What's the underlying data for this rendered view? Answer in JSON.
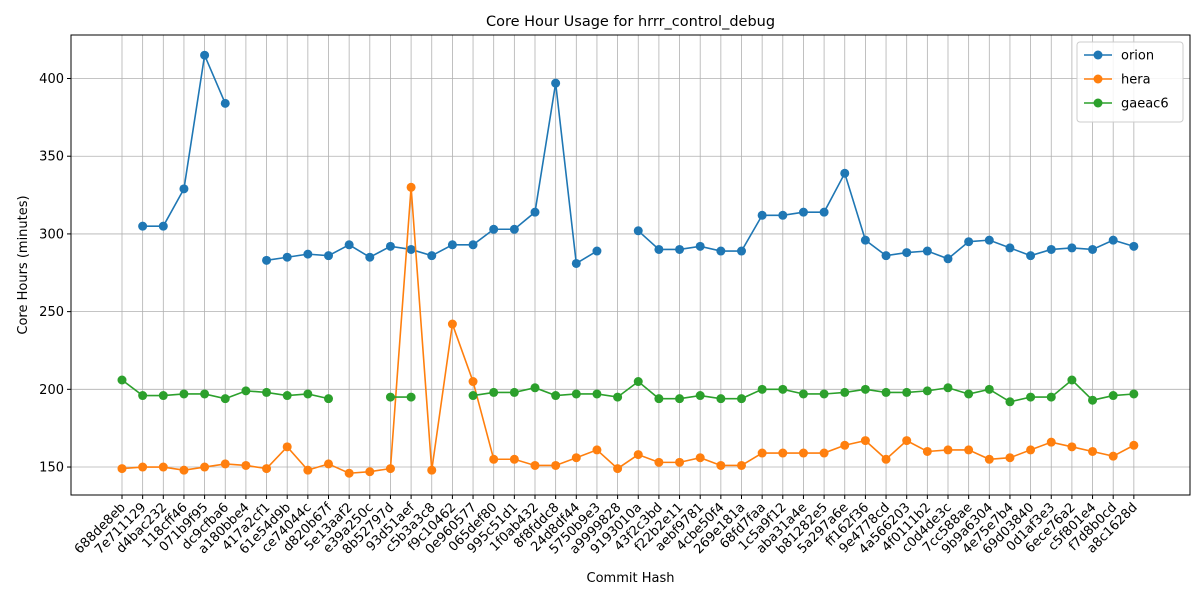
{
  "chart_data": {
    "type": "line",
    "title": "Core Hour Usage for hrrr_control_debug",
    "xlabel": "Commit Hash",
    "ylabel": "Core Hours (minutes)",
    "ylim": [
      132,
      428
    ],
    "yticks": [
      150,
      200,
      250,
      300,
      350,
      400
    ],
    "grid": true,
    "legend_position": "top-right",
    "categories": [
      "688de8eb",
      "7e711129",
      "d4bac232",
      "118cff46",
      "071b9f95",
      "dc9cfba6",
      "a180bbe4",
      "417a2cf1",
      "61e54d9b",
      "ce74044c",
      "d820b67f",
      "5e13aaf2",
      "e39a250c",
      "8b52797d",
      "93d51aef",
      "c5b3a3c8",
      "f9c10462",
      "0e960577",
      "065def80",
      "995c51d1",
      "1f0ab432",
      "8f8fddc8",
      "24d8df44",
      "5750b9e3",
      "a9999828",
      "9193010a",
      "43f2c3bd",
      "f22b2e11",
      "aebf9781",
      "4cbe50f4",
      "269e181a",
      "68fd7faa",
      "1c5a9f12",
      "aba31a4e",
      "b81282e5",
      "5a297a6e",
      "ff162f36",
      "9e4778cd",
      "4a566203",
      "4f0111b2",
      "c0d4de3c",
      "7cc588ae",
      "9b9a6304",
      "4e75e7b4",
      "69d03840",
      "0d1af3e3",
      "6ece76a2",
      "c5f801e4",
      "f7d8b0cd",
      "a8c1628d"
    ],
    "series": [
      {
        "name": "orion",
        "color": "#1f77b4",
        "values": [
          null,
          305,
          305,
          329,
          415,
          384,
          null,
          283,
          285,
          287,
          286,
          293,
          285,
          292,
          290,
          286,
          293,
          293,
          303,
          303,
          314,
          397,
          281,
          289,
          null,
          302,
          290,
          290,
          292,
          289,
          289,
          312,
          312,
          314,
          314,
          339,
          296,
          286,
          288,
          289,
          284,
          295,
          296,
          291,
          286,
          290,
          291,
          290,
          296,
          292
        ]
      },
      {
        "name": "hera",
        "color": "#ff7f0e",
        "values": [
          149,
          150,
          150,
          148,
          150,
          152,
          151,
          149,
          163,
          148,
          152,
          146,
          147,
          149,
          330,
          148,
          242,
          205,
          155,
          155,
          151,
          151,
          156,
          161,
          149,
          158,
          153,
          153,
          156,
          151,
          151,
          159,
          159,
          159,
          159,
          164,
          167,
          155,
          167,
          160,
          161,
          161,
          155,
          156,
          161,
          166,
          163,
          160,
          157,
          164
        ]
      },
      {
        "name": "gaeac6",
        "color": "#2ca02c",
        "values": [
          206,
          196,
          196,
          197,
          197,
          194,
          199,
          198,
          196,
          197,
          194,
          null,
          null,
          195,
          195,
          null,
          null,
          196,
          198,
          198,
          201,
          196,
          197,
          197,
          195,
          205,
          194,
          194,
          196,
          194,
          194,
          200,
          200,
          197,
          197,
          198,
          200,
          198,
          198,
          199,
          201,
          197,
          200,
          192,
          195,
          195,
          206,
          193,
          196,
          197
        ]
      }
    ]
  }
}
